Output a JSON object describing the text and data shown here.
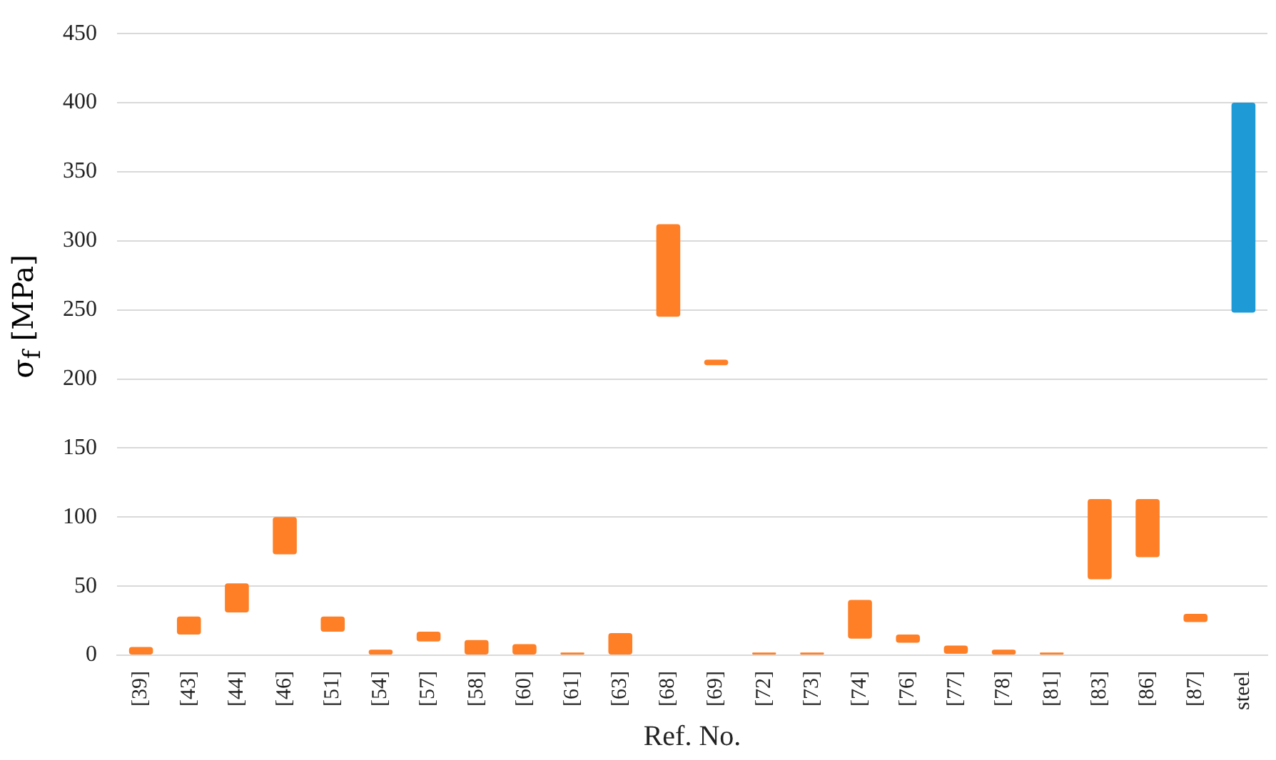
{
  "chart_data": {
    "type": "bar",
    "xlabel": "Ref. No.",
    "ylabel": "σ$_{f}$ [MPa]",
    "categories": [
      "[39]",
      "[43]",
      "[44]",
      "[46]",
      "[51]",
      "[54]",
      "[57]",
      "[58]",
      "[60]",
      "[61]",
      "[63]",
      "[68]",
      "[69]",
      "[72]",
      "[73]",
      "[74]",
      "[76]",
      "[77]",
      "[78]",
      "[81]",
      "[83]",
      "[86]",
      "[87]",
      "steel"
    ],
    "base": [
      0,
      15,
      31,
      73,
      17,
      0,
      10,
      0,
      0,
      0,
      0,
      245,
      210,
      0,
      0,
      12,
      9,
      1,
      0,
      0,
      55,
      71,
      24,
      248
    ],
    "values": [
      6,
      13,
      21,
      27,
      11,
      4,
      7,
      11,
      8,
      2,
      16,
      67,
      4,
      2,
      2,
      28,
      6,
      6,
      4,
      2,
      58,
      42,
      6,
      152
    ],
    "colors": [
      "#fe7f26",
      "#fe7f26",
      "#fe7f26",
      "#fe7f26",
      "#fe7f26",
      "#fe7f26",
      "#fe7f26",
      "#fe7f26",
      "#fe7f26",
      "#fe7f26",
      "#fe7f26",
      "#fe7f26",
      "#fe7f26",
      "#fe7f26",
      "#fe7f26",
      "#fe7f26",
      "#fe7f26",
      "#fe7f26",
      "#fe7f26",
      "#fe7f26",
      "#fe7f26",
      "#fe7f26",
      "#fe7f26",
      "#1e9bd7"
    ],
    "ylim": [
      0,
      450
    ],
    "yticks": [
      0,
      50,
      100,
      150,
      200,
      250,
      300,
      350,
      400,
      450
    ],
    "grid": "y",
    "legend": false
  }
}
